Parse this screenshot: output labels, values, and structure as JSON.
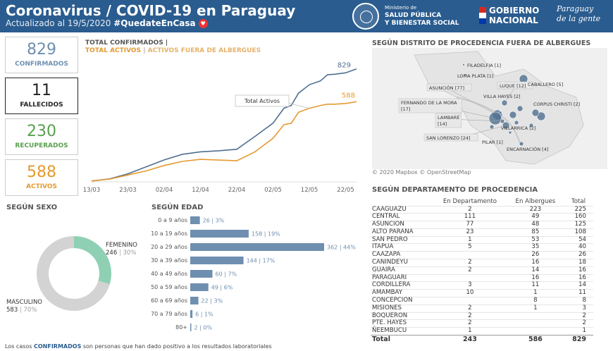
{
  "header": {
    "title": "Coronavirus / COVID-19 en Paraguay",
    "updated": "Actualizado al 19/5/2020",
    "hashtag": "#QuedateEnCasa",
    "ministry_small": "Ministerio de",
    "ministry_line1": "SALUD PÚBLICA",
    "ministry_line2": "Y BIENESTAR SOCIAL",
    "gob_line1": "GOBIERNO",
    "gob_line2": "NACIONAL",
    "script_line1": "Paraguay",
    "script_line2": "de la gente"
  },
  "kpis": [
    {
      "value": "829",
      "label": "CONFIRMADOS",
      "color": "#6f8fb0"
    },
    {
      "value": "11",
      "label": "FALLECIDOS",
      "color": "#222222"
    },
    {
      "value": "230",
      "label": "RECUPERADOS",
      "color": "#59a04f"
    },
    {
      "value": "588",
      "label": "ACTIVOS",
      "color": "#e59a2f"
    }
  ],
  "line_chart": {
    "title1": "TOTAL CONFIRMADOS |",
    "title2_a": "TOTAL ACTIVOS",
    "title2_sep": " | ",
    "title2_b": "ACTIVOS FUERA DE ALBERGUES",
    "tooltip": "Total Activos",
    "end_confirmed": "829",
    "end_active": "588",
    "x_ticks": [
      "13/03",
      "23/03",
      "02/04",
      "12/04",
      "22/04",
      "02/05",
      "12/05",
      "22/05"
    ]
  },
  "chart_data": {
    "type": "line",
    "x": [
      0,
      5,
      10,
      15,
      20,
      25,
      30,
      35,
      40,
      45,
      50,
      53,
      55,
      57,
      60,
      63,
      65,
      67,
      70,
      73
    ],
    "x_note_start": "13/03",
    "series": [
      {
        "name": "TOTAL CONFIRMADOS",
        "color": "#4f6f91",
        "values": [
          6,
          22,
          59,
          110,
          161,
          202,
          220,
          228,
          239,
          333,
          431,
          540,
          560,
          650,
          713,
          740,
          786,
          790,
          800,
          829
        ]
      },
      {
        "name": "TOTAL ACTIVOS",
        "color": "#e59a2f",
        "values": [
          6,
          20,
          50,
          80,
          120,
          150,
          165,
          160,
          155,
          220,
          320,
          420,
          430,
          510,
          540,
          560,
          570,
          570,
          575,
          588
        ]
      }
    ],
    "ylim": [
      0,
      900
    ]
  },
  "map": {
    "title": "SEGÚN DISTRITO DE PROCEDENCIA FUERA DE ALBERGUES",
    "credit": "© 2020 Mapbox  © OpenStreetMap",
    "labels": [
      {
        "text": "FILADELFIA [1]"
      },
      {
        "text": "LOMA PLATA [1]"
      },
      {
        "text": "ASUNCIÓN [77]"
      },
      {
        "text": "LUQUE [12]"
      },
      {
        "text": "CABALLERO [5]"
      },
      {
        "text": "VILLA HAYES [2]"
      },
      {
        "text": "FERNANDO DE LA MORA [17]"
      },
      {
        "text": "CORPUS CHRISTI [2]"
      },
      {
        "text": "LAMBARÉ [14]"
      },
      {
        "text": "VILLARRICA [2]"
      },
      {
        "text": "SAN LORENZO [24]"
      },
      {
        "text": "PILAR [1]"
      },
      {
        "text": "ENCARNACIÓN [4]"
      }
    ]
  },
  "sexo": {
    "title": "SEGÚN SEXO",
    "female_label": "FEMENINO",
    "female_value": "246",
    "female_pct": "30%",
    "male_label": "MASCULINO",
    "male_value": "583",
    "male_pct": "70%",
    "female_color": "#8fd0b4",
    "male_color": "#d3d3d3"
  },
  "edad": {
    "title": "SEGÚN EDAD",
    "rows": [
      {
        "label": "0 a 9 años",
        "value": 26,
        "pct": "3%"
      },
      {
        "label": "10 a 19 años",
        "value": 158,
        "pct": "19%"
      },
      {
        "label": "20 a 29 años",
        "value": 362,
        "pct": "44%"
      },
      {
        "label": "30 a 39 años",
        "value": 144,
        "pct": "17%"
      },
      {
        "label": "40 a 49 años",
        "value": 60,
        "pct": "7%"
      },
      {
        "label": "50 a 59 años",
        "value": 49,
        "pct": "6%"
      },
      {
        "label": "60 a 69 años",
        "value": 22,
        "pct": "3%"
      },
      {
        "label": "70 a 79 años",
        "value": 6,
        "pct": "1%"
      },
      {
        "label": "80+",
        "value": 2,
        "pct": "0%"
      }
    ]
  },
  "departamento": {
    "title": "SEGÚN DEPARTAMENTO DE PROCEDENCIA",
    "headers": [
      "",
      "En Departamento",
      "En Albergues",
      "Total"
    ],
    "rows": [
      [
        "CAAGUAZU",
        "2",
        "223",
        "225"
      ],
      [
        "CENTRAL",
        "111",
        "49",
        "160"
      ],
      [
        "ASUNCION",
        "77",
        "48",
        "125"
      ],
      [
        "ALTO PARANA",
        "23",
        "85",
        "108"
      ],
      [
        "SAN PEDRO",
        "1",
        "53",
        "54"
      ],
      [
        "ITAPUA",
        "5",
        "35",
        "40"
      ],
      [
        "CAAZAPA",
        "",
        "26",
        "26"
      ],
      [
        "CANINDEYU",
        "2",
        "16",
        "18"
      ],
      [
        "GUAIRA",
        "2",
        "14",
        "16"
      ],
      [
        "PARAGUARI",
        "",
        "16",
        "16"
      ],
      [
        "CORDILLERA",
        "3",
        "11",
        "14"
      ],
      [
        "AMAMBAY",
        "10",
        "1",
        "11"
      ],
      [
        "CONCEPCION",
        "",
        "8",
        "8"
      ],
      [
        "MISIONES",
        "2",
        "1",
        "3"
      ],
      [
        "BOQUERON",
        "2",
        "",
        "2"
      ],
      [
        "PTE. HAYES",
        "2",
        "",
        "2"
      ],
      [
        "ÑEEMBUCU",
        "1",
        "",
        "1"
      ]
    ],
    "total": [
      "Total",
      "243",
      "586",
      "829"
    ]
  },
  "footnote": {
    "pre": "Los casos ",
    "bold": "CONFIRMADOS",
    "post": " son personas que han dado positivo a los resultados laboratoriales"
  }
}
